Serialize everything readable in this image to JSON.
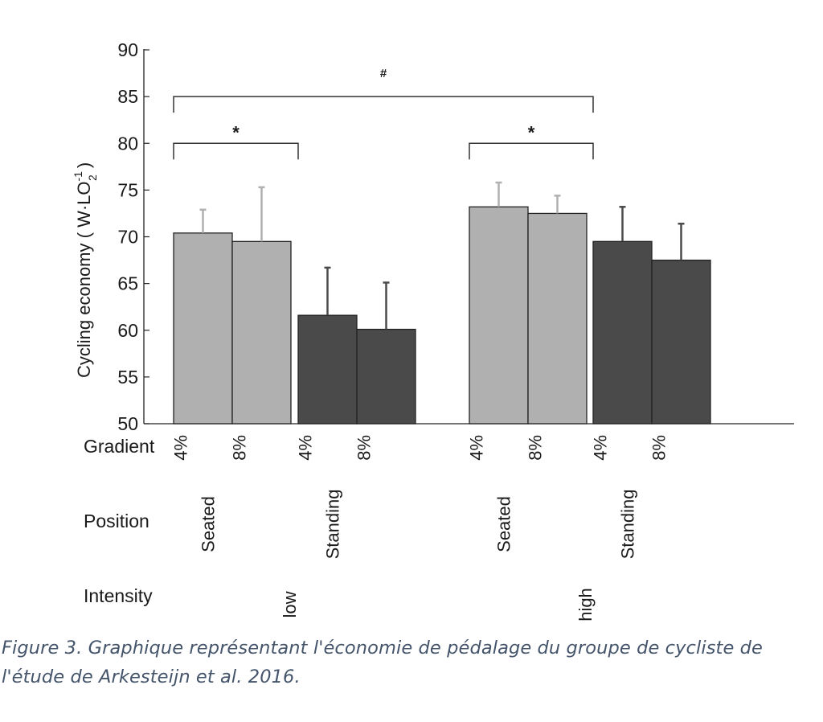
{
  "chart_data": {
    "type": "bar",
    "ylabel_main": "Cycling economy ( W·LO",
    "ylabel_sup": "-1",
    "ylabel_sub": "2",
    "ylabel_close": " )",
    "ylim": [
      50,
      90
    ],
    "yticks": [
      50,
      55,
      60,
      65,
      70,
      75,
      80,
      85,
      90
    ],
    "row_labels": {
      "gradient": "Gradient",
      "position": "Position",
      "intensity": "Intensity"
    },
    "bars": [
      {
        "gradient": "4%",
        "position": "Seated",
        "intensity": "low",
        "value": 70.4,
        "error": 2.5,
        "color": "#b0b0b0",
        "errcolor": "#b0b0b0"
      },
      {
        "gradient": "8%",
        "position": "Seated",
        "intensity": "low",
        "value": 69.5,
        "error": 5.8,
        "color": "#b0b0b0",
        "errcolor": "#b0b0b0"
      },
      {
        "gradient": "4%",
        "position": "Standing",
        "intensity": "low",
        "value": 61.6,
        "error": 5.1,
        "color": "#4a4a4a",
        "errcolor": "#4a4a4a"
      },
      {
        "gradient": "8%",
        "position": "Standing",
        "intensity": "low",
        "value": 60.1,
        "error": 5.0,
        "color": "#4a4a4a",
        "errcolor": "#4a4a4a"
      },
      {
        "gradient": "4%",
        "position": "Seated",
        "intensity": "high",
        "value": 73.2,
        "error": 2.6,
        "color": "#b0b0b0",
        "errcolor": "#b0b0b0"
      },
      {
        "gradient": "8%",
        "position": "Seated",
        "intensity": "high",
        "value": 72.5,
        "error": 1.9,
        "color": "#b0b0b0",
        "errcolor": "#b0b0b0"
      },
      {
        "gradient": "4%",
        "position": "Standing",
        "intensity": "high",
        "value": 69.5,
        "error": 3.7,
        "color": "#4a4a4a",
        "errcolor": "#4a4a4a"
      },
      {
        "gradient": "8%",
        "position": "Standing",
        "intensity": "high",
        "value": 67.5,
        "error": 3.9,
        "color": "#4a4a4a",
        "errcolor": "#4a4a4a"
      }
    ],
    "position_labels": [
      "Seated",
      "Standing",
      "Seated",
      "Standing"
    ],
    "intensity_labels": [
      "low",
      "high"
    ],
    "annotations": [
      {
        "symbol": "#",
        "from_bar": 0,
        "to_bar": 6,
        "level": 85
      },
      {
        "symbol": "*",
        "from_bar": 0,
        "to_bar": 2,
        "level": 80
      },
      {
        "symbol": "*",
        "from_bar": 4,
        "to_bar": 6,
        "level": 80
      }
    ]
  },
  "caption": "Figure 3. Graphique représentant l'économie de pédalage du groupe de cycliste de l'étude de Arkesteijn et al. 2016."
}
